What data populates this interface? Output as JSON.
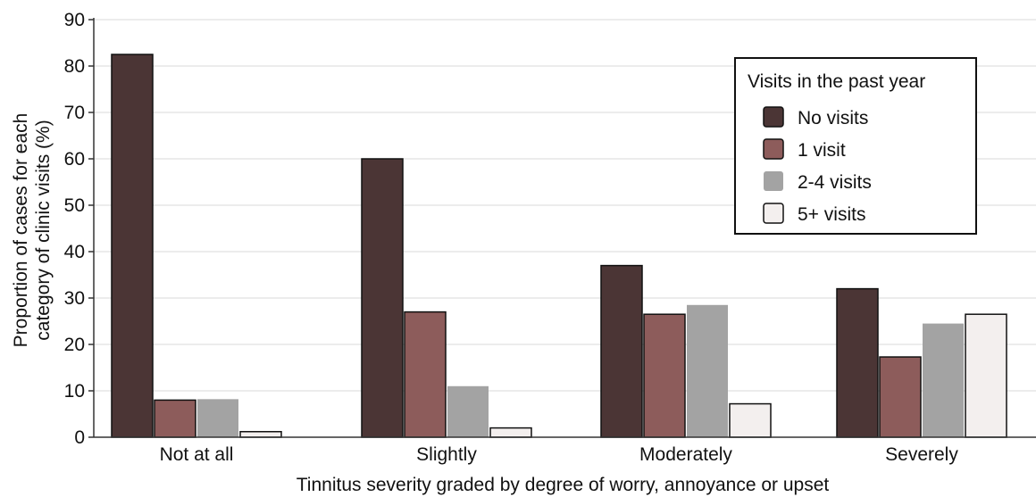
{
  "chart_data": {
    "type": "bar",
    "title": "",
    "xlabel": "Tinnitus severity graded by degree of worry, annoyance or upset",
    "ylabel_lines": [
      "Proportion of cases for each",
      "category of clinic visits (%)"
    ],
    "categories": [
      "Not at all",
      "Slightly",
      "Moderately",
      "Severely"
    ],
    "ylim": [
      0,
      90
    ],
    "yticks": [
      0,
      10,
      20,
      30,
      40,
      50,
      60,
      70,
      80,
      90
    ],
    "grid": true,
    "legend": {
      "title": "Visits in the past year",
      "position": "top-right"
    },
    "series": [
      {
        "name": "No visits",
        "color": "#4b3535",
        "values": [
          82.5,
          60,
          37,
          32
        ]
      },
      {
        "name": "1 visit",
        "color": "#8d5c5b",
        "values": [
          8,
          27,
          26.5,
          17.3
        ]
      },
      {
        "name": "2-4 visits",
        "color": "#a3a3a3",
        "values": [
          8.2,
          11,
          28.5,
          24.5
        ]
      },
      {
        "name": "5+ visits",
        "color": "#f3efee",
        "values": [
          1.2,
          2,
          7.2,
          26.5
        ]
      }
    ]
  }
}
